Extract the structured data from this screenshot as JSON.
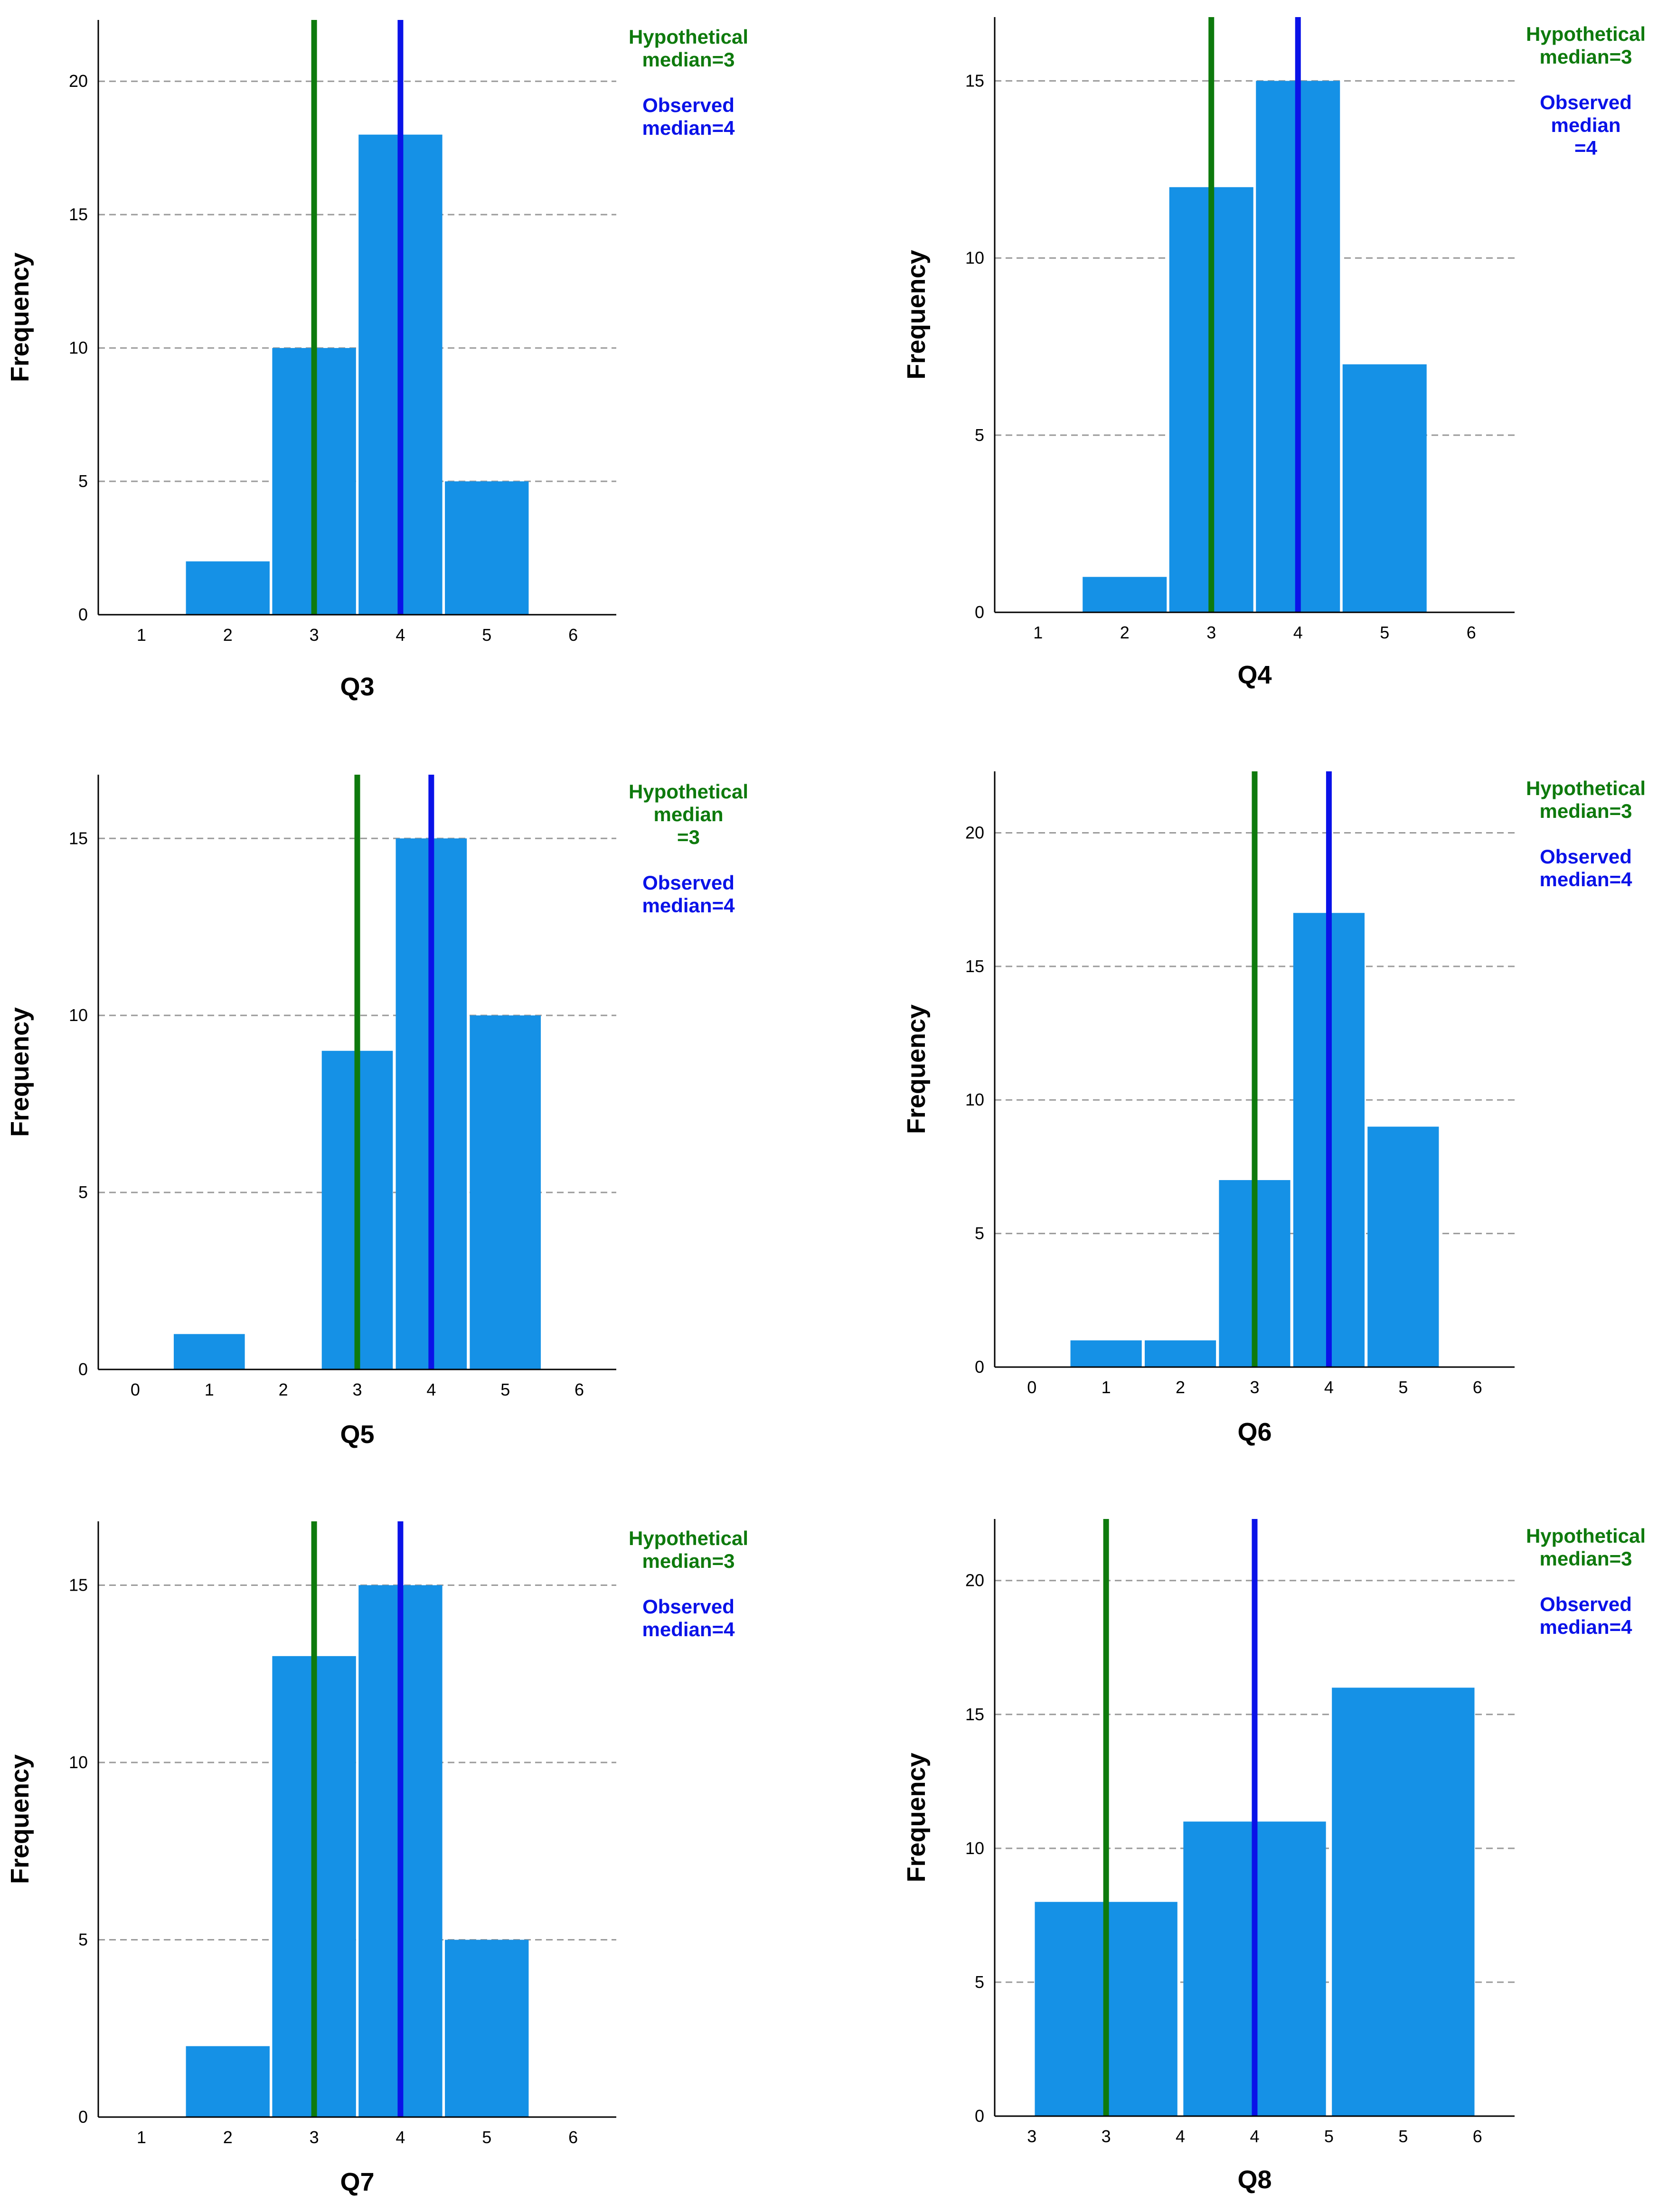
{
  "colors": {
    "bar": "#1591E6",
    "hypothetical": "#0E7A0D",
    "observed": "#0A12E8",
    "grid": "#9a9a9a",
    "axis": "#000000"
  },
  "chart_data": [
    {
      "type": "bar",
      "title": "Q3",
      "xlabel": "Q3",
      "ylabel": "Frequency",
      "xlim": [
        0.5,
        6.5
      ],
      "ylim": [
        0,
        22.3
      ],
      "yticks": [
        0,
        5,
        10,
        15,
        20
      ],
      "xticks": [
        {
          "value": 1,
          "label": "1"
        },
        {
          "value": 2,
          "label": "2"
        },
        {
          "value": 3,
          "label": "3"
        },
        {
          "value": 4,
          "label": "4"
        },
        {
          "value": 5,
          "label": "5"
        },
        {
          "value": 6,
          "label": "6"
        }
      ],
      "bar_width": 0.97,
      "bars": [
        {
          "x": 2,
          "value": 2
        },
        {
          "x": 3,
          "value": 10
        },
        {
          "x": 4,
          "value": 18
        },
        {
          "x": 5,
          "value": 5
        }
      ],
      "hypothetical_x": 3,
      "observed_x": 4,
      "annotations": {
        "hypothetical": [
          "Hypothetical",
          "median=3"
        ],
        "observed": [
          "Observed",
          "median=4"
        ]
      }
    },
    {
      "type": "bar",
      "title": "Q4",
      "xlabel": "Q4",
      "ylabel": "Frequency",
      "xlim": [
        0.5,
        6.5
      ],
      "ylim": [
        0,
        16.8
      ],
      "yticks": [
        0,
        5,
        10,
        15
      ],
      "xticks": [
        {
          "value": 1,
          "label": "1"
        },
        {
          "value": 2,
          "label": "2"
        },
        {
          "value": 3,
          "label": "3"
        },
        {
          "value": 4,
          "label": "4"
        },
        {
          "value": 5,
          "label": "5"
        },
        {
          "value": 6,
          "label": "6"
        }
      ],
      "bar_width": 0.97,
      "bars": [
        {
          "x": 2,
          "value": 1
        },
        {
          "x": 3,
          "value": 12
        },
        {
          "x": 4,
          "value": 15
        },
        {
          "x": 5,
          "value": 7
        }
      ],
      "hypothetical_x": 3,
      "observed_x": 4,
      "annotations": {
        "hypothetical": [
          "Hypothetical",
          "median=3"
        ],
        "observed": [
          "Observed",
          "median",
          "=4"
        ]
      }
    },
    {
      "type": "bar",
      "title": "Q5",
      "xlabel": "Q5",
      "ylabel": "Frequency",
      "xlim": [
        -0.5,
        6.5
      ],
      "ylim": [
        0,
        16.8
      ],
      "yticks": [
        0,
        5,
        10,
        15
      ],
      "xticks": [
        {
          "value": 0,
          "label": "0"
        },
        {
          "value": 1,
          "label": "1"
        },
        {
          "value": 2,
          "label": "2"
        },
        {
          "value": 3,
          "label": "3"
        },
        {
          "value": 4,
          "label": "4"
        },
        {
          "value": 5,
          "label": "5"
        },
        {
          "value": 6,
          "label": "6"
        }
      ],
      "bar_width": 0.96,
      "bars": [
        {
          "x": 1,
          "value": 1
        },
        {
          "x": 3,
          "value": 9
        },
        {
          "x": 4,
          "value": 15
        },
        {
          "x": 5,
          "value": 10
        }
      ],
      "hypothetical_x": 3,
      "observed_x": 4,
      "annotations": {
        "hypothetical": [
          "Hypothetical",
          "median",
          "=3"
        ],
        "observed": [
          "Observed",
          "median=4"
        ]
      }
    },
    {
      "type": "bar",
      "title": "Q6",
      "xlabel": "Q6",
      "ylabel": "Frequency",
      "xlim": [
        -0.5,
        6.5
      ],
      "ylim": [
        0,
        22.3
      ],
      "yticks": [
        0,
        5,
        10,
        15,
        20
      ],
      "xticks": [
        {
          "value": 0,
          "label": "0"
        },
        {
          "value": 1,
          "label": "1"
        },
        {
          "value": 2,
          "label": "2"
        },
        {
          "value": 3,
          "label": "3"
        },
        {
          "value": 4,
          "label": "4"
        },
        {
          "value": 5,
          "label": "5"
        },
        {
          "value": 6,
          "label": "6"
        }
      ],
      "bar_width": 0.96,
      "bars": [
        {
          "x": 1,
          "value": 1
        },
        {
          "x": 2,
          "value": 1
        },
        {
          "x": 3,
          "value": 7
        },
        {
          "x": 4,
          "value": 17
        },
        {
          "x": 5,
          "value": 9
        }
      ],
      "hypothetical_x": 3,
      "observed_x": 4,
      "annotations": {
        "hypothetical": [
          "Hypothetical",
          "median=3"
        ],
        "observed": [
          "Observed",
          "median=4"
        ]
      }
    },
    {
      "type": "bar",
      "title": "Q7",
      "xlabel": "Q7",
      "ylabel": "Frequency",
      "xlim": [
        0.5,
        6.5
      ],
      "ylim": [
        0,
        16.8
      ],
      "yticks": [
        0,
        5,
        10,
        15
      ],
      "xticks": [
        {
          "value": 1,
          "label": "1"
        },
        {
          "value": 2,
          "label": "2"
        },
        {
          "value": 3,
          "label": "3"
        },
        {
          "value": 4,
          "label": "4"
        },
        {
          "value": 5,
          "label": "5"
        },
        {
          "value": 6,
          "label": "6"
        }
      ],
      "bar_width": 0.97,
      "bars": [
        {
          "x": 2,
          "value": 2
        },
        {
          "x": 3,
          "value": 13
        },
        {
          "x": 4,
          "value": 15
        },
        {
          "x": 5,
          "value": 5
        }
      ],
      "hypothetical_x": 3,
      "observed_x": 4,
      "annotations": {
        "hypothetical": [
          "Hypothetical",
          "median=3"
        ],
        "observed": [
          "Observed",
          "median=4"
        ]
      }
    },
    {
      "type": "bar",
      "title": "Q8",
      "xlabel": "Q8",
      "ylabel": "Frequency",
      "xlim": [
        2.75,
        6.25
      ],
      "ylim": [
        0,
        22.3
      ],
      "yticks": [
        0,
        5,
        10,
        15,
        20
      ],
      "xticks": [
        {
          "value": 3,
          "label": "3"
        },
        {
          "value": 3.5,
          "label": "3"
        },
        {
          "value": 4,
          "label": "4"
        },
        {
          "value": 4.5,
          "label": "4"
        },
        {
          "value": 5,
          "label": "5"
        },
        {
          "value": 5.5,
          "label": "5"
        },
        {
          "value": 6,
          "label": "6"
        }
      ],
      "bar_width": 0.96,
      "bars": [
        {
          "x": 3.5,
          "value": 8
        },
        {
          "x": 4.5,
          "value": 11
        },
        {
          "x": 5.5,
          "value": 16
        }
      ],
      "hypothetical_x": 3.5,
      "observed_x": 4.5,
      "annotations": {
        "hypothetical": [
          "Hypothetical",
          "median=3"
        ],
        "observed": [
          "Observed",
          "median=4"
        ]
      }
    }
  ]
}
